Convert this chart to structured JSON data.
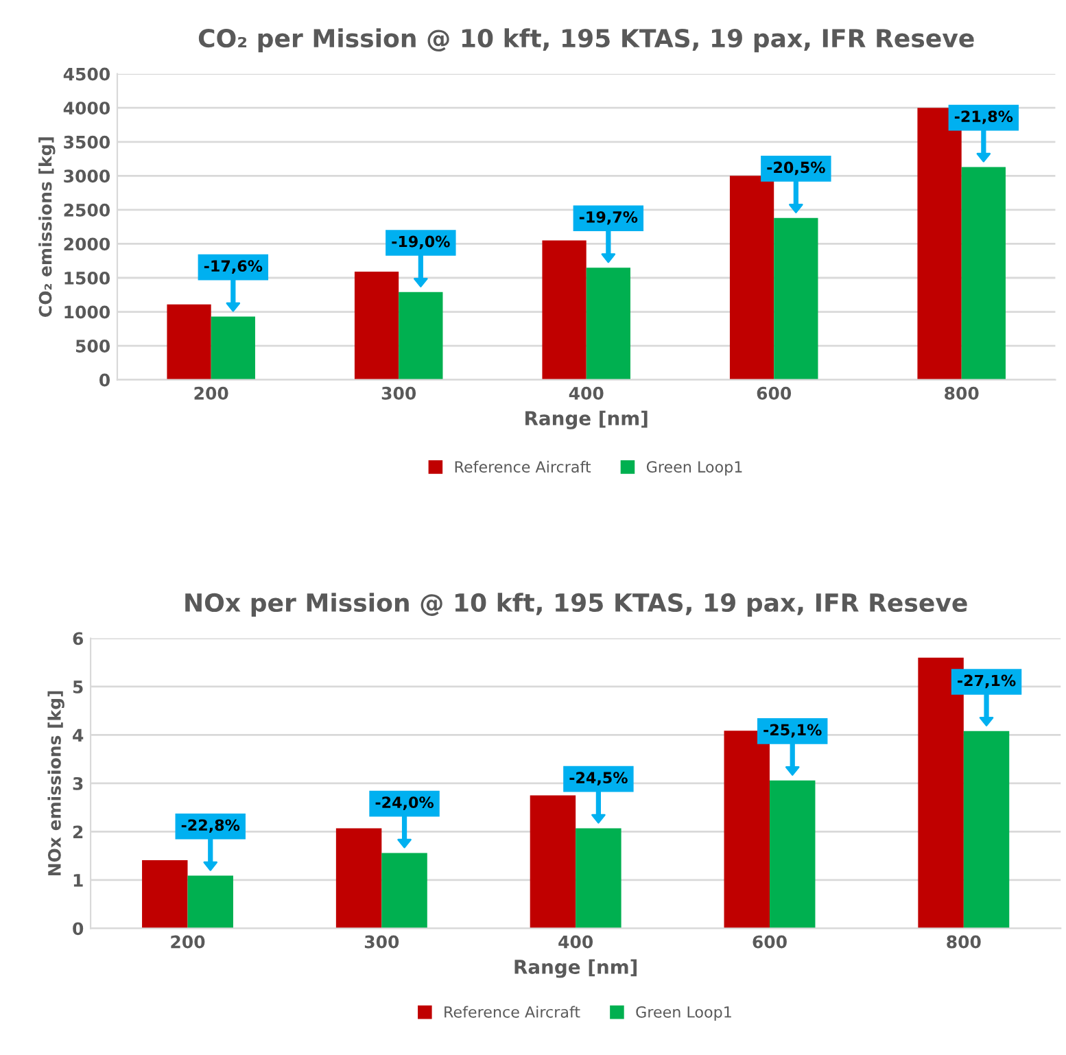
{
  "chart_data": [
    {
      "type": "bar",
      "title": "CO₂ per Mission @ 10 kft, 195 KTAS, 19 pax, IFR Reseve",
      "xlabel": "Range [nm]",
      "ylabel": "CO₂ emissions [kg]",
      "categories": [
        "200",
        "300",
        "400",
        "600",
        "800"
      ],
      "series": [
        {
          "name": "Reference Aircraft",
          "color": "#c00000",
          "values": [
            1110,
            1590,
            2050,
            3000,
            4000
          ]
        },
        {
          "name": "Green Loop1",
          "color": "#00b050",
          "values": [
            930,
            1290,
            1650,
            2380,
            3130
          ]
        }
      ],
      "ylim": [
        0,
        4500
      ],
      "yticks": [
        0,
        500,
        1000,
        1500,
        2000,
        2500,
        3000,
        3500,
        4000,
        4500
      ],
      "grid": "y",
      "legend": "bottom",
      "annotations": [
        {
          "text": "-17,6%",
          "x": "200",
          "y": 930
        },
        {
          "text": "-19,0%",
          "x": "300",
          "y": 1290
        },
        {
          "text": "-19,7%",
          "x": "400",
          "y": 1650
        },
        {
          "text": "-20,5%",
          "x": "600",
          "y": 2380
        },
        {
          "text": "-21,8%",
          "x": "800",
          "y": 3130
        }
      ]
    },
    {
      "type": "bar",
      "title": "NOx per Mission @ 10 kft, 195 KTAS, 19 pax, IFR Reseve",
      "xlabel": "Range [nm]",
      "ylabel": "NOx emissions [kg]",
      "categories": [
        "200",
        "300",
        "400",
        "600",
        "800"
      ],
      "series": [
        {
          "name": "Reference Aircraft",
          "color": "#c00000",
          "values": [
            1.41,
            2.07,
            2.75,
            4.09,
            5.6
          ]
        },
        {
          "name": "Green Loop1",
          "color": "#00b050",
          "values": [
            1.09,
            1.56,
            2.07,
            3.06,
            4.08
          ]
        }
      ],
      "ylim": [
        0,
        6
      ],
      "yticks": [
        0,
        1,
        2,
        3,
        4,
        5,
        6
      ],
      "grid": "y",
      "legend": "bottom",
      "annotations": [
        {
          "text": "-22,8%",
          "x": "200",
          "y": 1.09
        },
        {
          "text": "-24,0%",
          "x": "300",
          "y": 1.56
        },
        {
          "text": "-24,5%",
          "x": "400",
          "y": 2.07
        },
        {
          "text": "-25,1%",
          "x": "600",
          "y": 3.06
        },
        {
          "text": "-27,1%",
          "x": "800",
          "y": 4.08
        }
      ]
    }
  ]
}
